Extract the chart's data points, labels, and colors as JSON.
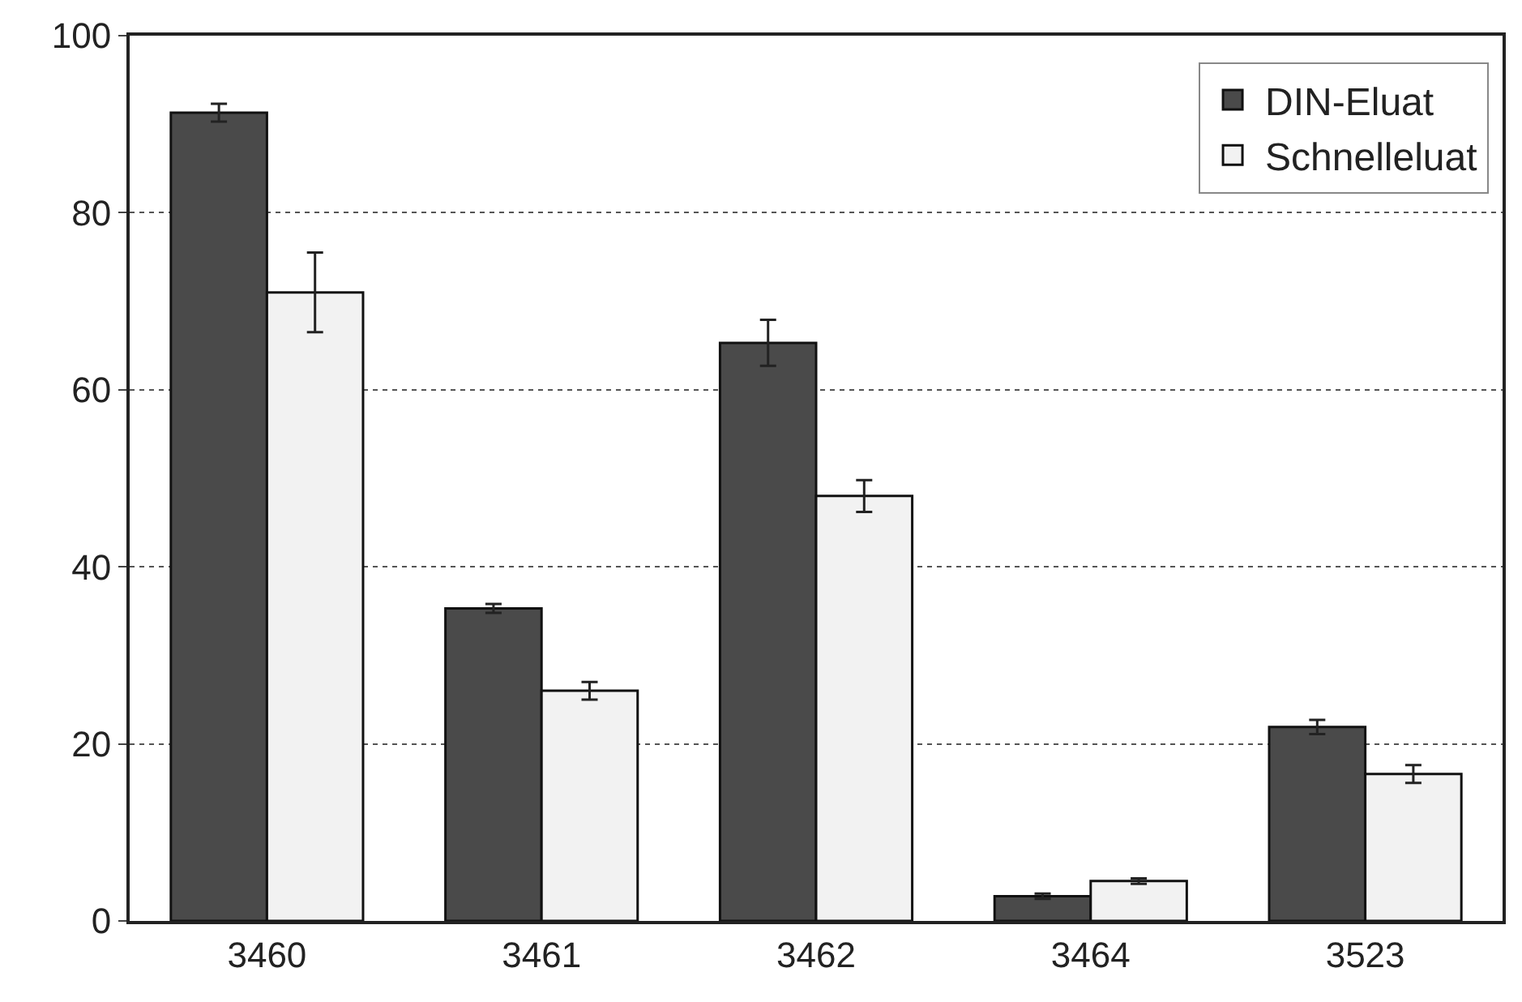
{
  "chart_data": {
    "type": "bar",
    "categories": [
      "3460",
      "3461",
      "3462",
      "3464",
      "3523"
    ],
    "series": [
      {
        "name": "DIN-Eluat",
        "color": "#4a4a4a",
        "values": [
          91.3,
          35.3,
          65.3,
          2.8,
          21.9
        ],
        "errors": [
          1,
          0.5,
          2.6,
          0.3,
          0.8
        ]
      },
      {
        "name": "Schnelleluat",
        "color": "#f2f2f2",
        "values": [
          71,
          26,
          48,
          4.5,
          16.6
        ],
        "errors": [
          4.5,
          1,
          1.8,
          0.3,
          1
        ]
      }
    ],
    "ylim": [
      0,
      100
    ],
    "yticks": [
      0,
      20,
      40,
      60,
      80,
      100
    ],
    "grid": "y",
    "legend": "top right"
  }
}
